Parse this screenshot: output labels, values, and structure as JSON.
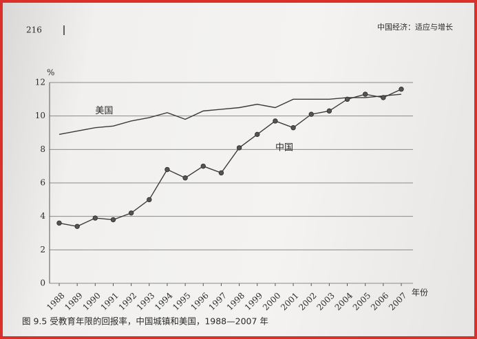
{
  "header": {
    "page_number": "216",
    "running_title": "中国经济：适应与增长"
  },
  "chart_data": {
    "type": "line",
    "caption": "图 9.5  受教育年限的回报率，中国城镇和美国，1988—2007 年",
    "y_unit": "%",
    "x_label": "年份",
    "categories": [
      "1988",
      "1989",
      "1990",
      "1991",
      "1992",
      "1993",
      "1994",
      "1995",
      "1996",
      "1997",
      "1998",
      "1999",
      "2000",
      "2001",
      "2002",
      "2003",
      "2004",
      "2005",
      "2006",
      "2007"
    ],
    "series": [
      {
        "name": "美国",
        "color": "#3a3a3a",
        "markers": false,
        "values": [
          8.9,
          9.1,
          9.3,
          9.4,
          9.7,
          9.9,
          10.2,
          9.8,
          10.3,
          10.4,
          10.5,
          10.7,
          10.5,
          11.0,
          11.0,
          11.0,
          11.1,
          11.1,
          11.2,
          11.3
        ]
      },
      {
        "name": "中国",
        "color": "#3a3a3a",
        "markers": true,
        "values": [
          3.6,
          3.4,
          3.9,
          3.8,
          4.2,
          5.0,
          6.8,
          6.3,
          7.0,
          6.6,
          8.1,
          8.9,
          9.7,
          9.3,
          10.1,
          10.3,
          11.0,
          11.3,
          11.1,
          11.6
        ]
      }
    ],
    "ylim": [
      0,
      12
    ],
    "yticks": [
      0,
      2,
      4,
      6,
      8,
      10,
      12
    ],
    "grid": true
  }
}
